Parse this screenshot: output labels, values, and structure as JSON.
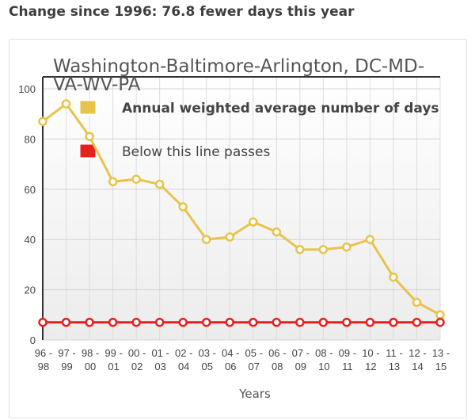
{
  "headline": "Change since 1996: 76.8 fewer days this year",
  "chart_data": {
    "type": "line",
    "title": "Washington-Baltimore-Arlington, DC-MD-VA-WV-PA",
    "title_lines": [
      "Washington-Baltimore-Arlington, DC-MD-",
      "VA-WV-PA"
    ],
    "xlabel": "Years",
    "ylabel": "",
    "ylim": [
      0,
      100
    ],
    "yticks": [
      0,
      20,
      40,
      60,
      80,
      100
    ],
    "grid": true,
    "legend_position": "top-left",
    "categories": [
      [
        "96 -",
        "98"
      ],
      [
        "97 -",
        "99"
      ],
      [
        "98 -",
        "00"
      ],
      [
        "99 -",
        "01"
      ],
      [
        "00 -",
        "02"
      ],
      [
        "01 -",
        "03"
      ],
      [
        "02 -",
        "04"
      ],
      [
        "03 -",
        "05"
      ],
      [
        "04 -",
        "06"
      ],
      [
        "05 -",
        "07"
      ],
      [
        "06 -",
        "08"
      ],
      [
        "07 -",
        "09"
      ],
      [
        "08 -",
        "10"
      ],
      [
        "09 -",
        "11"
      ],
      [
        "10 -",
        "12"
      ],
      [
        "11 -",
        "13"
      ],
      [
        "12 -",
        "14"
      ],
      [
        "13 -",
        "15"
      ]
    ],
    "series": [
      {
        "name": "Annual weighted average number of days",
        "color": "#e8c34a",
        "values": [
          87,
          94,
          81,
          63,
          64,
          62,
          53,
          40,
          41,
          47,
          43,
          36,
          36,
          37,
          40,
          25,
          15,
          10
        ]
      },
      {
        "name": "Below this line passes",
        "color": "#e81f1f",
        "values": [
          7,
          7,
          7,
          7,
          7,
          7,
          7,
          7,
          7,
          7,
          7,
          7,
          7,
          7,
          7,
          7,
          7,
          7
        ]
      }
    ]
  }
}
